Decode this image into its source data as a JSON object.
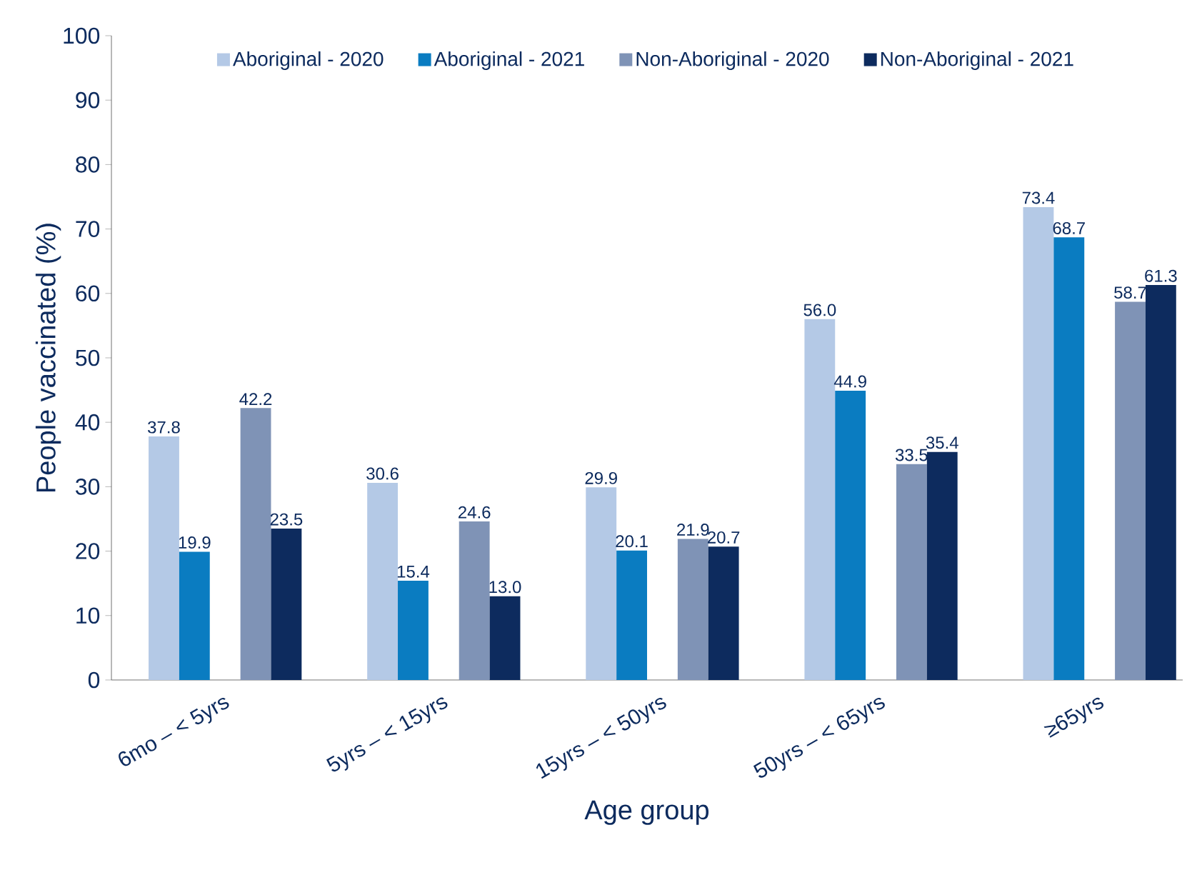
{
  "chart_data": {
    "type": "bar",
    "xlabel": "Age group",
    "ylabel": "People vaccinated (%)",
    "categories": [
      "6mo – < 5yrs",
      "5yrs – < 15yrs",
      "15yrs – < 50yrs",
      "50yrs – < 65yrs",
      "≥65yrs"
    ],
    "series": [
      {
        "name": "Aboriginal - 2020",
        "color": "#b4c9e6",
        "values": [
          37.8,
          30.6,
          29.9,
          56.0,
          73.4
        ],
        "value_labels": [
          "37.8",
          "30.6",
          "29.9",
          "56.0",
          "73.4"
        ]
      },
      {
        "name": "Aboriginal - 2021",
        "color": "#0a7cc1",
        "values": [
          19.9,
          15.4,
          20.1,
          44.9,
          68.7
        ],
        "value_labels": [
          "19.9",
          "15.4",
          "20.1",
          "44.9",
          "68.7"
        ]
      },
      {
        "name": "Non-Aboriginal - 2020",
        "color": "#7f93b6",
        "values": [
          42.2,
          24.6,
          21.9,
          33.5,
          58.7
        ],
        "value_labels": [
          "42.2",
          "24.6",
          "21.9",
          "33.5",
          "58.7"
        ]
      },
      {
        "name": "Non-Aboriginal - 2021",
        "color": "#0d2b5e",
        "values": [
          23.5,
          13.0,
          20.7,
          35.4,
          61.3
        ],
        "value_labels": [
          "23.5",
          "13.0",
          "20.7",
          "35.4",
          "61.3"
        ]
      }
    ],
    "ylim": [
      0,
      100
    ],
    "yticks": [
      0,
      10,
      20,
      30,
      40,
      50,
      60,
      70,
      80,
      90,
      100
    ],
    "legend": "top",
    "grid": false
  }
}
